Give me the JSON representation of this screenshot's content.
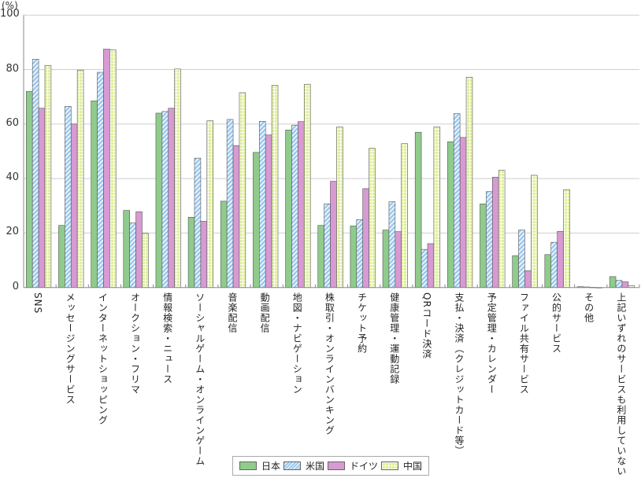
{
  "chart_data": {
    "type": "bar",
    "title": "",
    "ylabel": "(%)",
    "xlabel": "",
    "ylim": [
      0,
      100
    ],
    "yticks": [
      "0",
      "20",
      "40",
      "60",
      "80",
      "100"
    ],
    "grid": true,
    "legend_position": "bottom-center",
    "categories": [
      "SNS",
      "メッセージングサービス",
      "インターネットショッピング",
      "オークション・フリマ",
      "情報検索・ニュース",
      "ソーシャルゲーム・オンラインゲーム",
      "音楽配信",
      "動画配信",
      "地図・ナビゲーション",
      "株取引・オンラインバンキング",
      "チケット予約",
      "健康管理・運動記録",
      "QRコード決済",
      "支払・決済（クレジットカード等）",
      "予定管理・カレンダー",
      "ファイル共有サービス",
      "公的サービス",
      "その他",
      "上記いずれのサービスも利用していない"
    ],
    "series": [
      {
        "name": "日本",
        "color": "#8fcb8b",
        "pattern": "solid",
        "values": [
          72.0,
          22.8,
          68.5,
          28.3,
          64.0,
          25.8,
          31.7,
          49.6,
          57.8,
          22.8,
          22.6,
          21.1,
          57.0,
          53.5,
          30.7,
          11.7,
          12.1,
          0.3,
          4.0
        ]
      },
      {
        "name": "米国",
        "color": "#9cc8ee",
        "pattern": "diagonal",
        "values": [
          83.8,
          66.5,
          79.0,
          23.7,
          64.6,
          47.5,
          61.7,
          61.0,
          59.6,
          30.7,
          24.9,
          31.5,
          14.0,
          63.8,
          35.2,
          21.1,
          16.6,
          0.2,
          2.6
        ]
      },
      {
        "name": "ドイツ",
        "color": "#d79ad2",
        "pattern": "solid",
        "values": [
          65.8,
          60.0,
          87.5,
          27.8,
          65.8,
          24.3,
          52.1,
          56.0,
          60.9,
          39.0,
          36.3,
          20.5,
          16.1,
          55.1,
          40.5,
          6.2,
          20.6,
          0.1,
          2.1
        ]
      },
      {
        "name": "中国",
        "color": "#dff09a",
        "pattern": "grid",
        "values": [
          81.5,
          79.8,
          87.3,
          19.9,
          80.2,
          61.2,
          71.5,
          74.2,
          74.6,
          58.9,
          51.1,
          52.8,
          58.9,
          77.2,
          43.0,
          41.2,
          35.9,
          0.0,
          0.7
        ]
      }
    ]
  }
}
